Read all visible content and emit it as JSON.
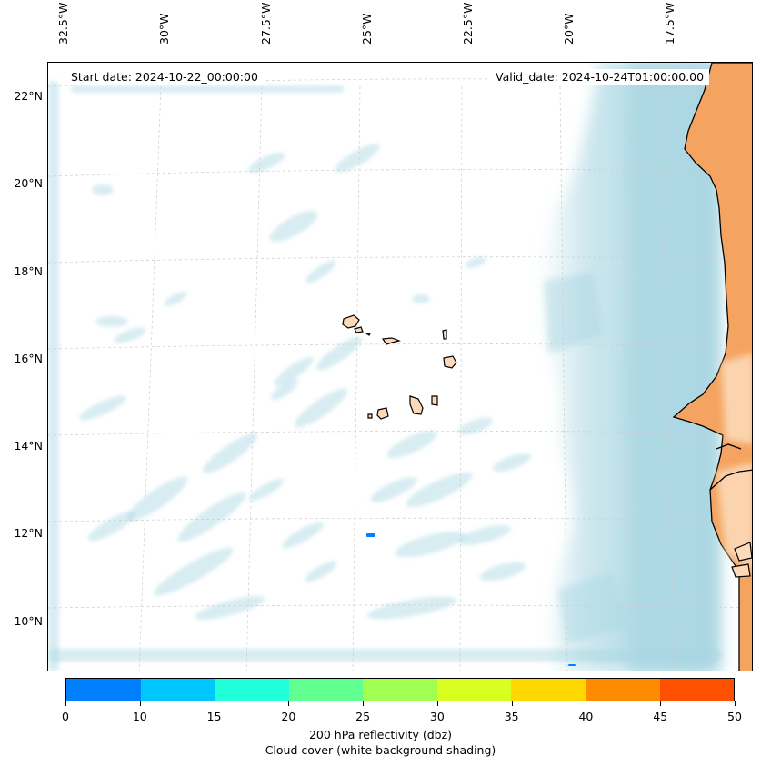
{
  "map": {
    "lon_labels": [
      "32.5°W",
      "30°W",
      "27.5°W",
      "25°W",
      "22.5°W",
      "20°W",
      "17.5°W"
    ],
    "lat_labels": [
      "22°N",
      "20°N",
      "18°N",
      "16°N",
      "14°N",
      "12°N",
      "10°N"
    ],
    "start_date": "Start date: 2024-10-22_00:00:00",
    "valid_date": "Valid_date: 2024-10-24T01:00:00.00",
    "colors": {
      "cloud": "#a9d6e2",
      "land_africa": "#f4a460",
      "land_islands": "#fcd9b8",
      "coast": "#000000",
      "grid": "#cccccc"
    },
    "features": [
      "Cape Verde islands",
      "West African coast"
    ]
  },
  "colorbar": {
    "ticks": [
      "0",
      "10",
      "15",
      "20",
      "25",
      "30",
      "35",
      "40",
      "45",
      "50"
    ],
    "colors": [
      "#0080ff",
      "#00c8ff",
      "#20ffd8",
      "#60ff90",
      "#a0ff50",
      "#d8ff20",
      "#ffd800",
      "#ff8c00",
      "#ff5000"
    ],
    "label_line1": "200 hPa reflectivity (dbz)",
    "label_line2": "Cloud cover (white background shading)"
  }
}
